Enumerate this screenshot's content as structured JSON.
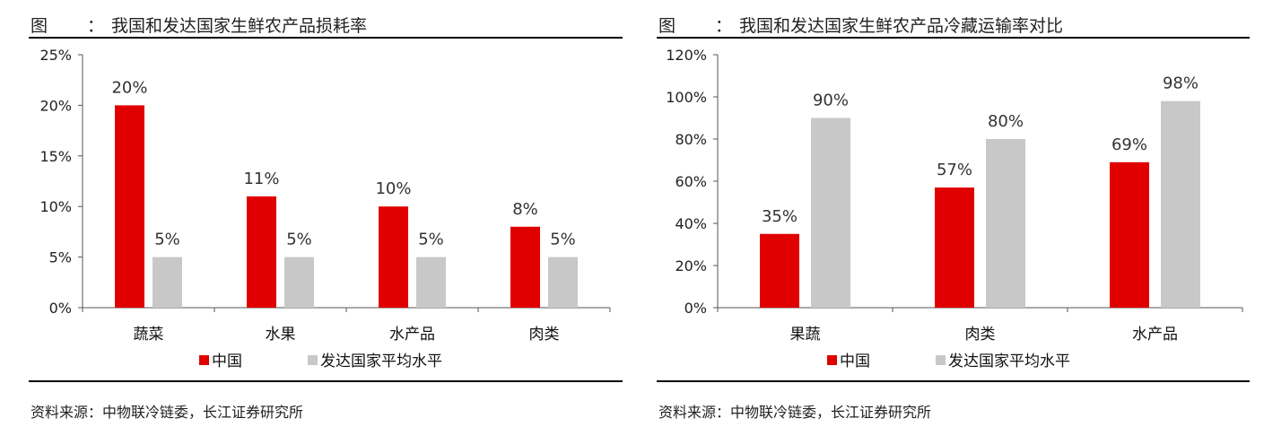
{
  "source_prefix": "资料来源：",
  "source_text": "中物联冷链委，长江证券研究所",
  "charts": [
    {
      "fig_label": "图",
      "fig_sep": "：",
      "title": "我国和发达国家生鲜农产品损耗率",
      "colors": {
        "china": "#e00000",
        "developed": "#c8c8c8"
      }
    },
    {
      "fig_label": "图",
      "fig_sep": "：",
      "title": "我国和发达国家生鲜农产品冷藏运输率对比",
      "colors": {
        "china": "#e00000",
        "developed": "#c8c8c8"
      }
    }
  ],
  "chart_data": [
    {
      "type": "bar",
      "title": "我国和发达国家生鲜农产品损耗率",
      "categories": [
        "蔬菜",
        "水果",
        "水产品",
        "肉类"
      ],
      "series": [
        {
          "name": "中国",
          "values": [
            20,
            11,
            10,
            8
          ],
          "labels": [
            "20%",
            "11%",
            "10%",
            "8%"
          ]
        },
        {
          "name": "发达国家平均水平",
          "values": [
            5,
            5,
            5,
            5
          ],
          "labels": [
            "5%",
            "5%",
            "5%",
            "5%"
          ]
        }
      ],
      "ylim": [
        0,
        25
      ],
      "yticks": [
        "0%",
        "5%",
        "10%",
        "15%",
        "20%",
        "25%"
      ],
      "legend": "bottom",
      "grid": false
    },
    {
      "type": "bar",
      "title": "我国和发达国家生鲜农产品冷藏运输率对比",
      "categories": [
        "果蔬",
        "肉类",
        "水产品"
      ],
      "series": [
        {
          "name": "中国",
          "values": [
            35,
            57,
            69
          ],
          "labels": [
            "35%",
            "57%",
            "69%"
          ]
        },
        {
          "name": "发达国家平均水平",
          "values": [
            90,
            80,
            98
          ],
          "labels": [
            "90%",
            "80%",
            "98%"
          ]
        }
      ],
      "ylim": [
        0,
        120
      ],
      "yticks": [
        "0%",
        "20%",
        "40%",
        "60%",
        "80%",
        "100%",
        "120%"
      ],
      "legend": "bottom",
      "grid": false
    }
  ]
}
